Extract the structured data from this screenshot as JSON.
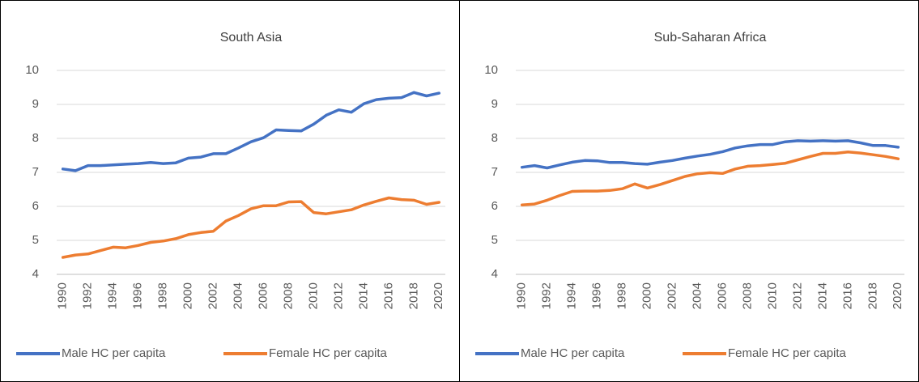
{
  "chart_data": [
    {
      "type": "line",
      "title": "South Asia",
      "x": [
        1990,
        1991,
        1992,
        1993,
        1994,
        1995,
        1996,
        1997,
        1998,
        1999,
        2000,
        2001,
        2002,
        2003,
        2004,
        2005,
        2006,
        2007,
        2008,
        2009,
        2010,
        2011,
        2012,
        2013,
        2014,
        2015,
        2016,
        2017,
        2018,
        2019,
        2020
      ],
      "xlim": [
        1989.5,
        2020.5
      ],
      "xticks": [
        1990,
        1992,
        1994,
        1996,
        1998,
        2000,
        2002,
        2004,
        2006,
        2008,
        2010,
        2012,
        2014,
        2016,
        2018,
        2020
      ],
      "ylim": [
        4,
        10
      ],
      "yticks": [
        4,
        5,
        6,
        7,
        8,
        9,
        10
      ],
      "grid": true,
      "legend": "bottom",
      "series": [
        {
          "name": "Male HC per capita",
          "color": "#4472c4",
          "values": [
            7.1,
            7.05,
            7.2,
            7.2,
            7.22,
            7.24,
            7.26,
            7.29,
            7.26,
            7.28,
            7.42,
            7.45,
            7.55,
            7.55,
            7.72,
            7.9,
            8.02,
            8.25,
            8.23,
            8.22,
            8.42,
            8.68,
            8.84,
            8.77,
            9.02,
            9.14,
            9.18,
            9.2,
            9.35,
            9.25,
            9.33
          ]
        },
        {
          "name": "Female HC per capita",
          "color": "#ed7d31",
          "values": [
            4.5,
            4.57,
            4.6,
            4.7,
            4.8,
            4.78,
            4.85,
            4.94,
            4.98,
            5.05,
            5.17,
            5.23,
            5.27,
            5.57,
            5.73,
            5.93,
            6.02,
            6.02,
            6.13,
            6.14,
            5.82,
            5.78,
            5.84,
            5.9,
            6.04,
            6.15,
            6.25,
            6.2,
            6.18,
            6.06,
            6.12
          ]
        }
      ]
    },
    {
      "type": "line",
      "title": "Sub-Saharan Africa",
      "x": [
        1990,
        1991,
        1992,
        1993,
        1994,
        1995,
        1996,
        1997,
        1998,
        1999,
        2000,
        2001,
        2002,
        2003,
        2004,
        2005,
        2006,
        2007,
        2008,
        2009,
        2010,
        2011,
        2012,
        2013,
        2014,
        2015,
        2016,
        2017,
        2018,
        2019,
        2020
      ],
      "xlim": [
        1989.5,
        2020.5
      ],
      "xticks": [
        1990,
        1992,
        1994,
        1996,
        1998,
        2000,
        2002,
        2004,
        2006,
        2008,
        2010,
        2012,
        2014,
        2016,
        2018,
        2020
      ],
      "ylim": [
        4,
        10
      ],
      "yticks": [
        4,
        5,
        6,
        7,
        8,
        9,
        10
      ],
      "grid": true,
      "legend": "bottom",
      "series": [
        {
          "name": "Male HC per capita",
          "color": "#4472c4",
          "values": [
            7.15,
            7.2,
            7.13,
            7.22,
            7.3,
            7.35,
            7.34,
            7.29,
            7.29,
            7.26,
            7.24,
            7.3,
            7.35,
            7.42,
            7.48,
            7.53,
            7.61,
            7.72,
            7.78,
            7.82,
            7.82,
            7.9,
            7.93,
            7.92,
            7.93,
            7.92,
            7.93,
            7.87,
            7.79,
            7.79,
            7.74
          ]
        },
        {
          "name": "Female HC per capita",
          "color": "#ed7d31",
          "values": [
            6.04,
            6.07,
            6.18,
            6.32,
            6.44,
            6.45,
            6.45,
            6.47,
            6.52,
            6.66,
            6.54,
            6.64,
            6.76,
            6.88,
            6.96,
            6.99,
            6.97,
            7.1,
            7.18,
            7.2,
            7.23,
            7.27,
            7.37,
            7.47,
            7.56,
            7.56,
            7.6,
            7.57,
            7.52,
            7.47,
            7.4
          ]
        }
      ]
    }
  ]
}
